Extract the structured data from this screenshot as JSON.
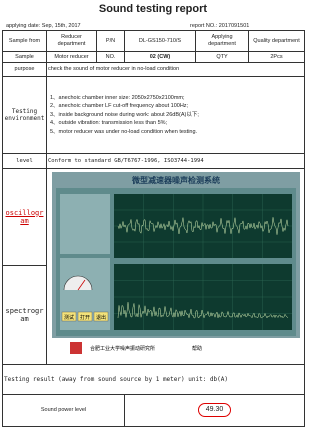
{
  "header": {
    "title": "Sound testing report",
    "applying_date": "applying date: Sep, 15th, 2017",
    "report_no": "report NO.: 2017091501"
  },
  "table": {
    "sample_from": {
      "label": "Sample from",
      "value": "Reducer department",
      "pn_label": "P/N",
      "pn": "DL-GS150-710/S",
      "applying_label": "Applying department",
      "applying": "Quality department"
    },
    "sample": {
      "label": "Sample",
      "value": "Motor reducer",
      "no_label": "NO.",
      "no": "02 (CW)",
      "qty_label": "QTY",
      "qty": "2Pcs"
    },
    "purpose": {
      "label": "purpose",
      "value": "check the sound of motor reducer in no-load condition"
    },
    "environment": {
      "label": "Testing environment",
      "items": [
        "1、anechoic chamber inner size: 2050x2750x2100mm;",
        "2、anechoic chamber LF cut-off frequency about 100Hz;",
        "3、inside background noise during work: about 26dB(A)以下;",
        "4、outside vibration: transmission less than 5%;",
        "5、motor reducer was under no-load condition when testing."
      ]
    },
    "level": {
      "label": "level",
      "value": "Conform to standard GB/T6767-1996, ISO3744-1994"
    },
    "oscillogram": {
      "label": "oscillogram"
    },
    "spectrogram": {
      "label": "spectrogram"
    },
    "screenshot": {
      "title": "微型减速器噪声检测系统",
      "buttons": [
        "测试",
        "打开",
        "退出"
      ],
      "org": "合肥工业大学噪声振动研究所",
      "help": "帮助"
    },
    "result": {
      "label": "Testing result (away from sound source by 1 meter) unit: db(A)"
    },
    "power": {
      "label": "Sound power level",
      "value": "49.30"
    }
  }
}
